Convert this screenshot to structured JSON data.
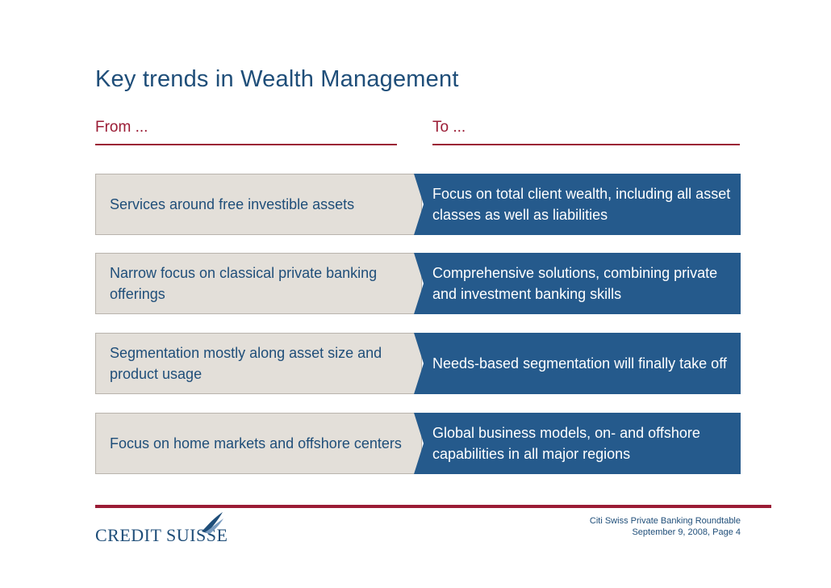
{
  "slide": {
    "title": "Key trends in Wealth Management",
    "from_heading": "From ...",
    "to_heading": "To ...",
    "rows": [
      {
        "from": "Services around free investible assets",
        "to": "Focus on total client wealth, including all asset classes as well as liabilities"
      },
      {
        "from": "Narrow focus on classical private banking offerings",
        "to": "Comprehensive solutions, combining private and investment banking skills"
      },
      {
        "from": "Segmentation mostly along asset size and product usage",
        "to": "Needs-based segmentation will finally take off"
      },
      {
        "from": "Focus on home markets and offshore centers",
        "to": "Global business models, on- and offshore capabilities in all major regions"
      }
    ]
  },
  "footer": {
    "logo_text": "CREDIT SUISSE",
    "event": "Citi Swiss Private Banking Roundtable",
    "date_page": "September 9, 2008, Page 4"
  },
  "colors": {
    "title": "#1f4e79",
    "accent_red": "#9b1c35",
    "from_box": "#e3dfd9",
    "to_box": "#255a8c"
  }
}
